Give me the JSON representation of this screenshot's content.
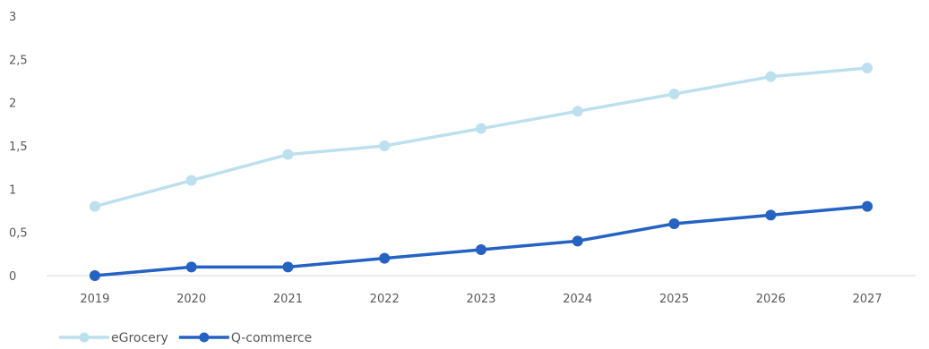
{
  "chart_data": {
    "type": "line",
    "title": "",
    "xlabel": "",
    "ylabel": "",
    "categories": [
      "2019",
      "2020",
      "2021",
      "2022",
      "2023",
      "2024",
      "2025",
      "2026",
      "2027"
    ],
    "ylim": [
      0,
      3
    ],
    "yticks": [
      "0",
      "0,5",
      "1",
      "1,5",
      "2",
      "2,5",
      "3"
    ],
    "grid": false,
    "legend_position": "bottom-left",
    "series": [
      {
        "name": "eGrocery",
        "color": "#BCE0EE",
        "values": [
          0.8,
          1.1,
          1.4,
          1.5,
          1.7,
          1.9,
          2.1,
          2.3,
          2.4
        ]
      },
      {
        "name": "Q-commerce",
        "color": "#2462C4",
        "values": [
          0.0,
          0.1,
          0.1,
          0.2,
          0.3,
          0.4,
          0.6,
          0.7,
          0.8
        ]
      }
    ]
  }
}
